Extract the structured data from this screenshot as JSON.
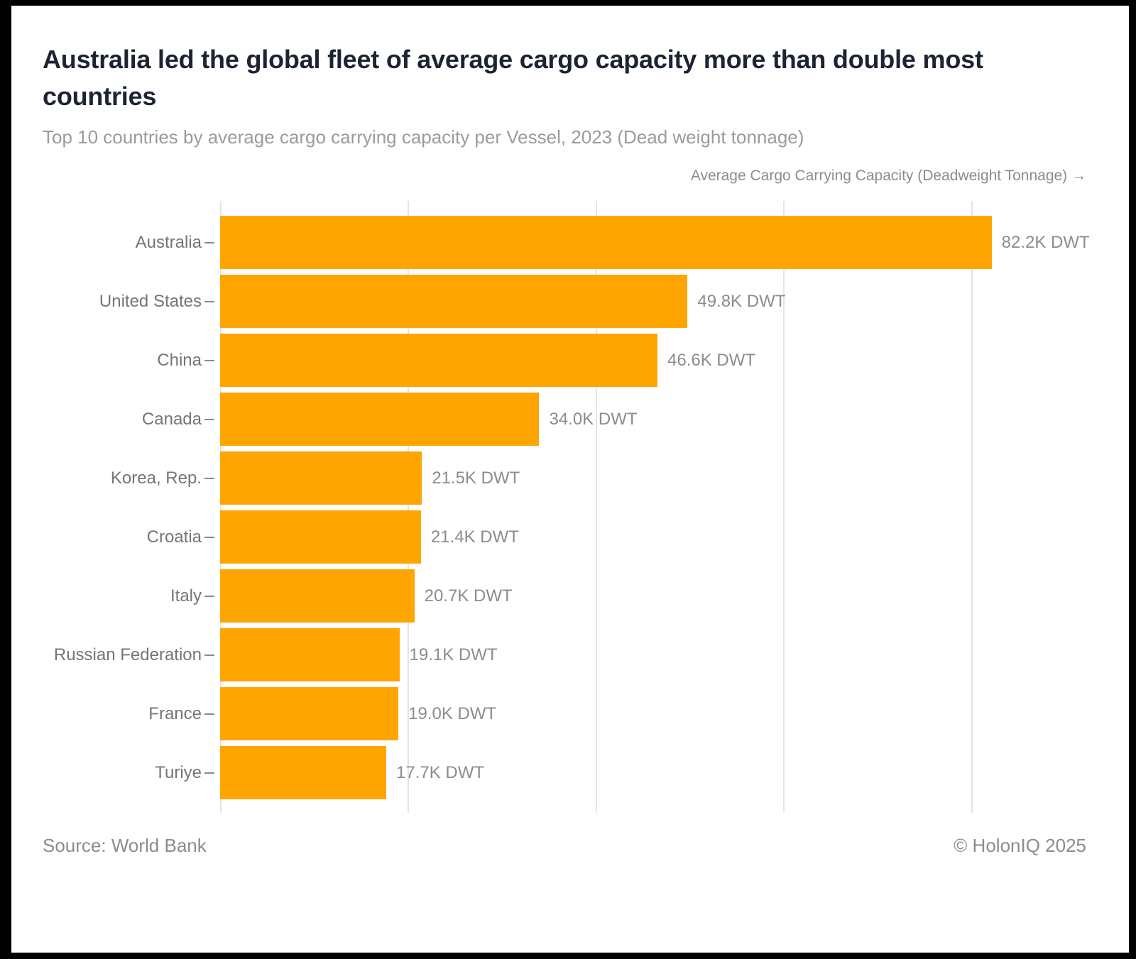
{
  "page": {
    "background": "#ffffff",
    "frame_color": "#000000"
  },
  "chart_data": {
    "type": "bar",
    "orientation": "horizontal",
    "title": "Australia led the global fleet of average cargo capacity more than double most countries",
    "subtitle": "Top 10 countries by average cargo carrying capacity per Vessel, 2023 (Dead weight tonnage)",
    "xlabel": "Average Cargo Carrying Capacity (Deadweight Tonnage) →",
    "ylabel": "",
    "unit": "K DWT",
    "categories": [
      "Australia",
      "United States",
      "China",
      "Canada",
      "Korea, Rep.",
      "Croatia",
      "Italy",
      "Russian Federation",
      "France",
      "Turiye"
    ],
    "values": [
      82.2,
      49.8,
      46.6,
      34.0,
      21.5,
      21.4,
      20.7,
      19.1,
      19.0,
      17.7
    ],
    "value_labels": [
      "82.2K DWT",
      "49.8K DWT",
      "46.6K DWT",
      "34.0K DWT",
      "21.5K DWT",
      "21.4K DWT",
      "20.7K DWT",
      "19.1K DWT",
      "19.0K DWT",
      "17.7K DWT"
    ],
    "xlim": [
      0,
      82.2
    ],
    "gridlines_k": [
      0,
      20,
      40,
      60,
      80
    ],
    "grid": true,
    "legend": false,
    "bar_color": "#FFA502"
  },
  "footer": {
    "source": "Source: World Bank",
    "copyright": "© HolonIQ 2025"
  },
  "colors": {
    "bar": "#FFA502",
    "title": "#1c2433",
    "subtitle": "#9b9b9b",
    "axis_label": "#8c8c8c",
    "category_label": "#757575",
    "value_label": "#8c8c8c",
    "gridline": "#e4e4e4",
    "tick": "#8a8a8a"
  }
}
